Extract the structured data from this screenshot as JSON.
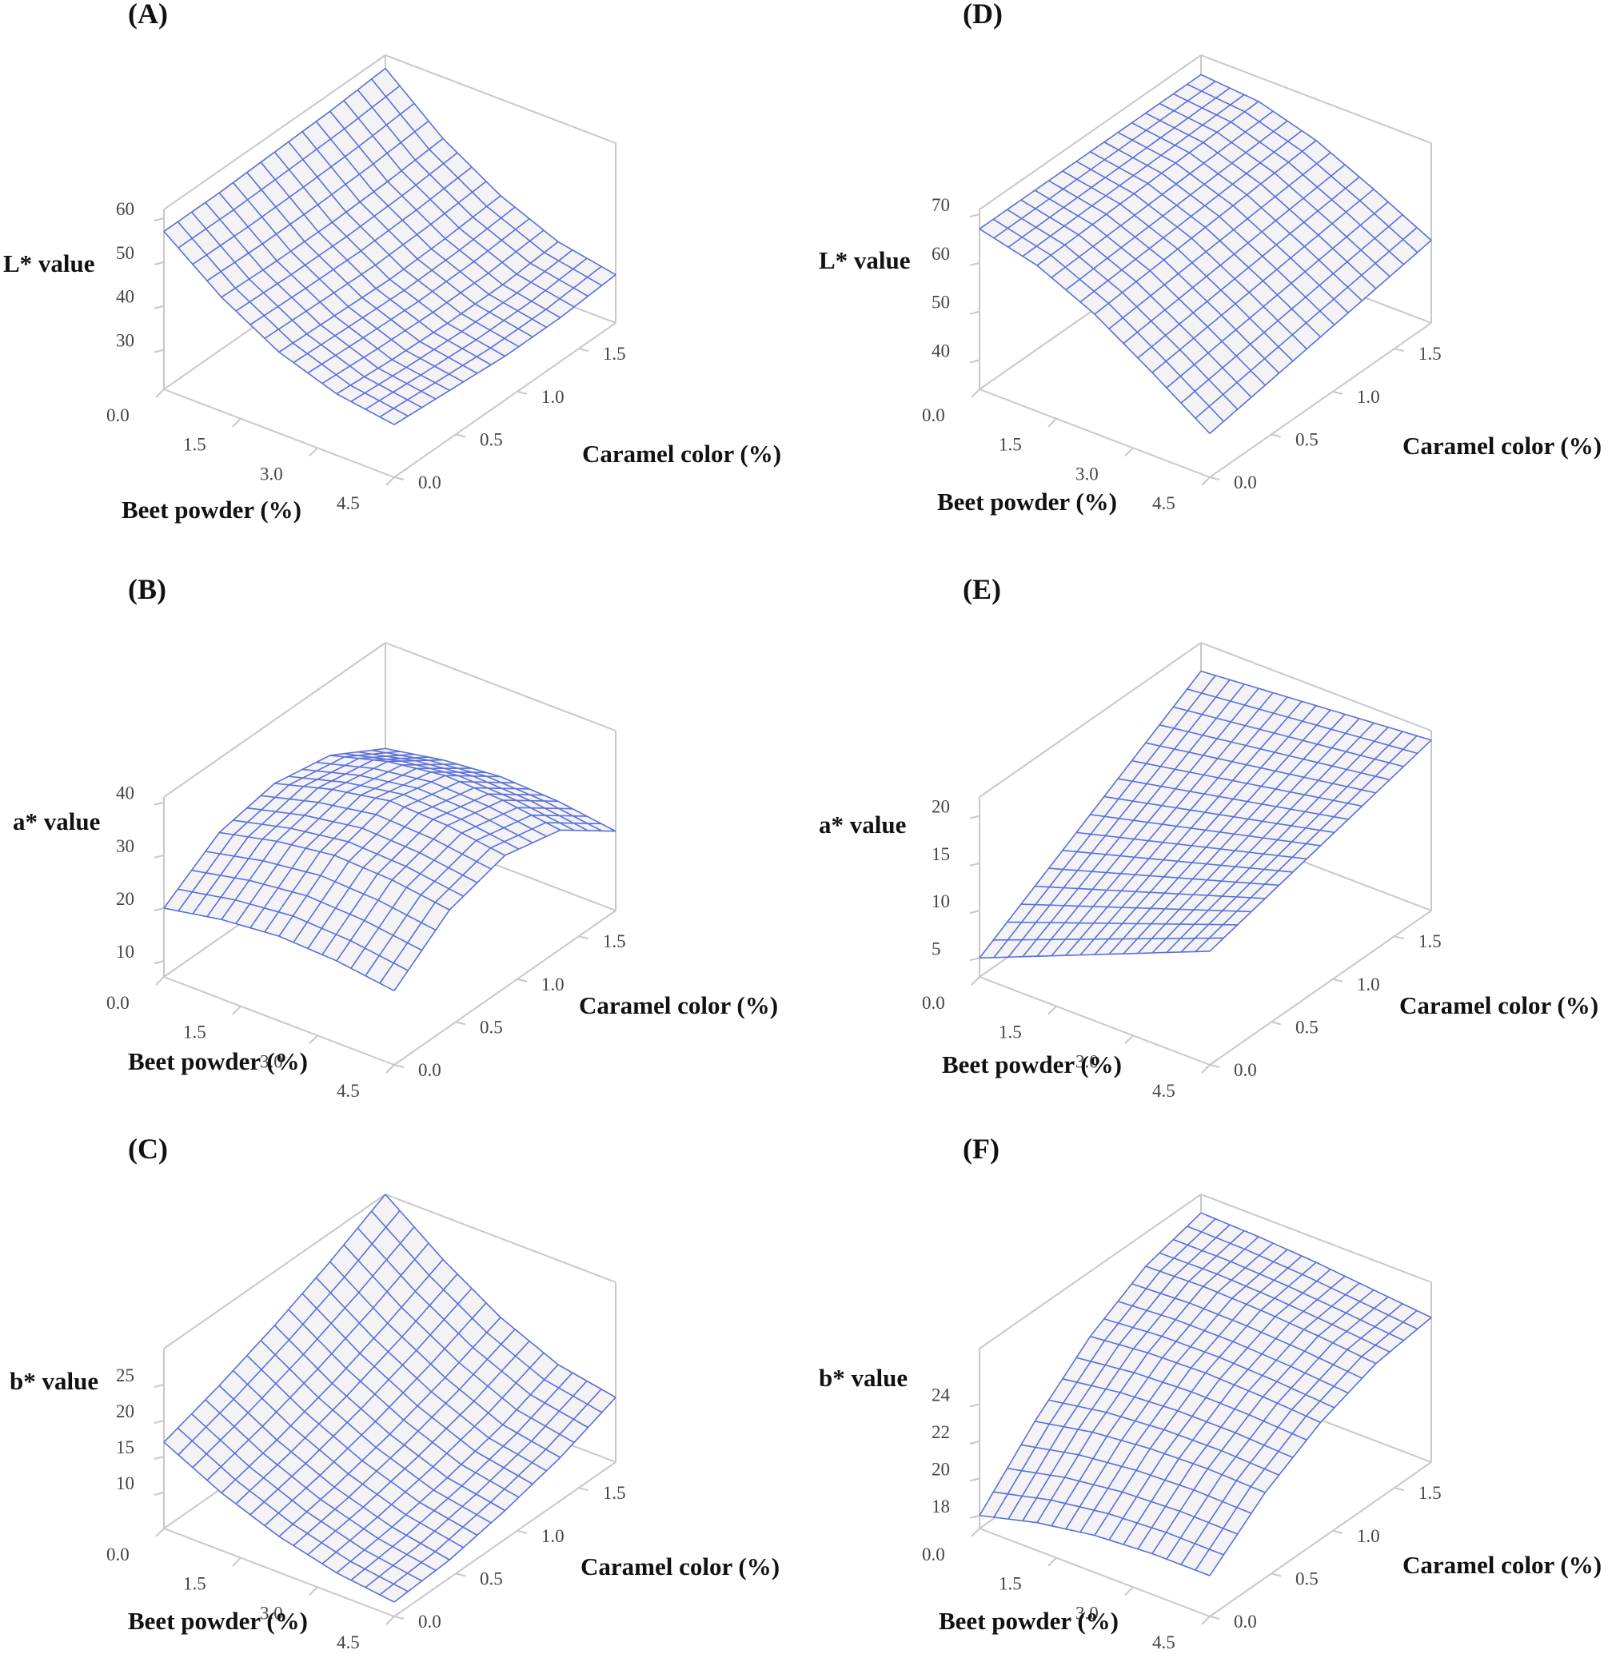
{
  "figure": {
    "panels": [
      "A",
      "B",
      "C",
      "D",
      "E",
      "F"
    ]
  },
  "chart_data": [
    {
      "id": "A",
      "type": "surface3d",
      "label": "(A)",
      "zlabel": "L* value",
      "xlabel": "Beet powder (%)",
      "ylabel": "Caramel color (%)",
      "x_ticks": [
        "0.0",
        "1.5",
        "3.0",
        "4.5"
      ],
      "y_ticks": [
        "0.0",
        "0.5",
        "1.0",
        "1.5"
      ],
      "z_ticks": [
        "30",
        "40",
        "50",
        "60"
      ],
      "zlim": [
        21,
        62
      ],
      "x": [
        0,
        1.125,
        2.25,
        3.375,
        4.5
      ],
      "y": [
        0,
        0.45,
        0.9,
        1.35,
        1.8
      ],
      "z": [
        [
          57,
          57,
          57.5,
          58,
          59
        ],
        [
          47,
          46.5,
          46.5,
          47,
          48
        ],
        [
          39.5,
          39,
          38.5,
          39,
          40
        ],
        [
          35,
          34,
          33.5,
          33.5,
          34.5
        ],
        [
          33,
          32,
          31,
          31,
          32
        ]
      ]
    },
    {
      "id": "B",
      "type": "surface3d",
      "label": "(B)",
      "zlabel": "a* value",
      "xlabel": "Beet powder (%)",
      "ylabel": "Caramel color (%)",
      "x_ticks": [
        "0.0",
        "1.5",
        "3.0",
        "4.5"
      ],
      "y_ticks": [
        "0.0",
        "0.5",
        "1.0",
        "1.5"
      ],
      "z_ticks": [
        "10",
        "20",
        "30",
        "40"
      ],
      "zlim": [
        7,
        41
      ],
      "x": [
        0,
        1.125,
        2.25,
        3.375,
        4.5
      ],
      "y": [
        0,
        0.45,
        0.9,
        1.35,
        1.8
      ],
      "z": [
        [
          20,
          27,
          29,
          27,
          21
        ],
        [
          22,
          29.5,
          32,
          30,
          23
        ],
        [
          23,
          31,
          34,
          31.5,
          24
        ],
        [
          22.5,
          30.5,
          33.5,
          31,
          23.5
        ],
        [
          21,
          29,
          32,
          29.5,
          22
        ]
      ]
    },
    {
      "id": "C",
      "type": "surface3d",
      "label": "(C)",
      "zlabel": "b* value",
      "xlabel": "Beet powder (%)",
      "ylabel": "Caramel color (%)",
      "x_ticks": [
        "0.0",
        "1.5",
        "3.0",
        "4.5"
      ],
      "y_ticks": [
        "0.0",
        "0.5",
        "1.0",
        "1.5"
      ],
      "z_ticks": [
        "10",
        "15",
        "20",
        "25"
      ],
      "zlim": [
        5,
        30
      ],
      "x": [
        0,
        1.125,
        2.25,
        3.375,
        4.5
      ],
      "y": [
        0,
        0.45,
        0.9,
        1.35,
        1.8
      ],
      "z": [
        [
          17,
          19.5,
          22.5,
          26,
          30
        ],
        [
          13,
          15,
          17.5,
          20.5,
          24
        ],
        [
          10,
          11.5,
          13.5,
          16,
          19
        ],
        [
          8,
          9,
          10.5,
          12.5,
          15.5
        ],
        [
          7,
          7.5,
          9,
          11,
          14
        ]
      ]
    },
    {
      "id": "D",
      "type": "surface3d",
      "label": "(D)",
      "zlabel": "L* value",
      "xlabel": "Beet powder (%)",
      "ylabel": "Caramel color (%)",
      "x_ticks": [
        "0.0",
        "1.5",
        "3.0",
        "4.5"
      ],
      "y_ticks": [
        "0.0",
        "0.5",
        "1.0",
        "1.5"
      ],
      "z_ticks": [
        "40",
        "50",
        "60",
        "70"
      ],
      "zlim": [
        34,
        71
      ],
      "x": [
        0,
        1.125,
        2.25,
        3.375,
        4.5
      ],
      "y": [
        0,
        0.45,
        0.9,
        1.35,
        1.8
      ],
      "z": [
        [
          67,
          67,
          67,
          67,
          67
        ],
        [
          64,
          64.5,
          65,
          65.5,
          66
        ],
        [
          58.5,
          59.5,
          60.5,
          61.5,
          62.5
        ],
        [
          51,
          52.5,
          54,
          55.5,
          57
        ],
        [
          43,
          45,
          47,
          49,
          51
        ]
      ]
    },
    {
      "id": "E",
      "type": "surface3d",
      "label": "(E)",
      "zlabel": "a* value",
      "xlabel": "Beet powder (%)",
      "ylabel": "Caramel color (%)",
      "x_ticks": [
        "0.0",
        "1.5",
        "3.0",
        "4.5"
      ],
      "y_ticks": [
        "0.0",
        "0.5",
        "1.0",
        "1.5"
      ],
      "z_ticks": [
        "5",
        "10",
        "15",
        "20"
      ],
      "zlim": [
        3,
        22
      ],
      "x": [
        0,
        1.125,
        2.25,
        3.375,
        4.5
      ],
      "y": [
        0,
        0.45,
        0.9,
        1.35,
        1.8
      ],
      "z": [
        [
          5,
          8.5,
          12,
          15.5,
          19
        ],
        [
          7.5,
          10.5,
          13.5,
          16.5,
          19.5
        ],
        [
          10,
          12.5,
          15,
          17.5,
          20
        ],
        [
          12.5,
          14.5,
          16.5,
          18.5,
          20.5
        ],
        [
          15,
          16.5,
          18,
          19.5,
          21
        ]
      ]
    },
    {
      "id": "F",
      "type": "surface3d",
      "label": "(F)",
      "zlabel": "b* value",
      "xlabel": "Beet powder (%)",
      "ylabel": "Caramel color (%)",
      "x_ticks": [
        "0.0",
        "1.5",
        "3.0",
        "4.5"
      ],
      "y_ticks": [
        "0.0",
        "0.5",
        "1.0",
        "1.5"
      ],
      "z_ticks": [
        "18",
        "20",
        "22",
        "24"
      ],
      "zlim": [
        17.3,
        27
      ],
      "x": [
        0,
        1.125,
        2.25,
        3.375,
        4.5
      ],
      "y": [
        0,
        0.45,
        0.9,
        1.35,
        1.8
      ],
      "z": [
        [
          18,
          21,
          23.5,
          25.2,
          26
        ],
        [
          18.8,
          21.6,
          23.8,
          25.3,
          25.9
        ],
        [
          19.3,
          21.9,
          23.9,
          25.2,
          25.7
        ],
        [
          19.5,
          22,
          23.8,
          25,
          25.4
        ],
        [
          19.5,
          21.9,
          23.6,
          24.7,
          25.1
        ]
      ]
    }
  ]
}
